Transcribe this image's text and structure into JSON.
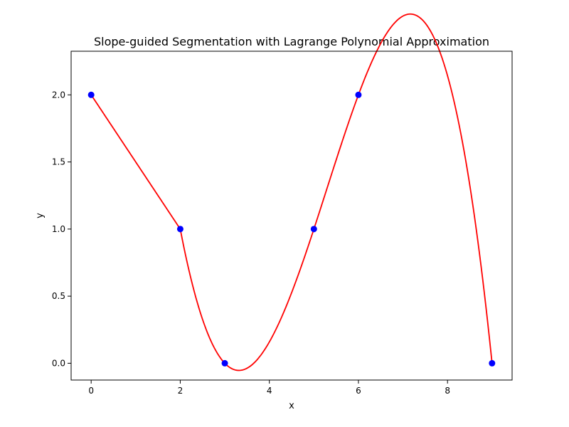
{
  "chart_data": {
    "type": "line",
    "title": "Slope-guided Segmentation with Lagrange Polynomial Approximation",
    "xlabel": "x",
    "ylabel": "y",
    "xlim": [
      -0.45,
      9.45
    ],
    "ylim": [
      -0.125,
      2.325
    ],
    "xticks": [
      0,
      2,
      4,
      6,
      8
    ],
    "xtick_labels": [
      "0",
      "2",
      "4",
      "6",
      "8"
    ],
    "yticks": [
      0.0,
      0.5,
      1.0,
      1.5,
      2.0
    ],
    "ytick_labels": [
      "0.0",
      "0.5",
      "1.0",
      "1.5",
      "2.0"
    ],
    "grid": false,
    "legend": "none",
    "points": {
      "color": "#0000ff",
      "x": [
        0,
        2,
        3,
        5,
        6,
        9
      ],
      "y": [
        2,
        1,
        0,
        1,
        2,
        0
      ]
    },
    "curve": {
      "color": "#ff0000",
      "segments": [
        {
          "x_range": [
            0,
            2
          ],
          "anchors": {
            "x": [
              0,
              2
            ],
            "y": [
              2,
              1
            ]
          }
        },
        {
          "x_range": [
            2,
            9
          ],
          "anchors": {
            "x": [
              2,
              3,
              5,
              6,
              9
            ],
            "y": [
              1,
              0,
              1,
              2,
              0
            ]
          }
        }
      ]
    }
  }
}
